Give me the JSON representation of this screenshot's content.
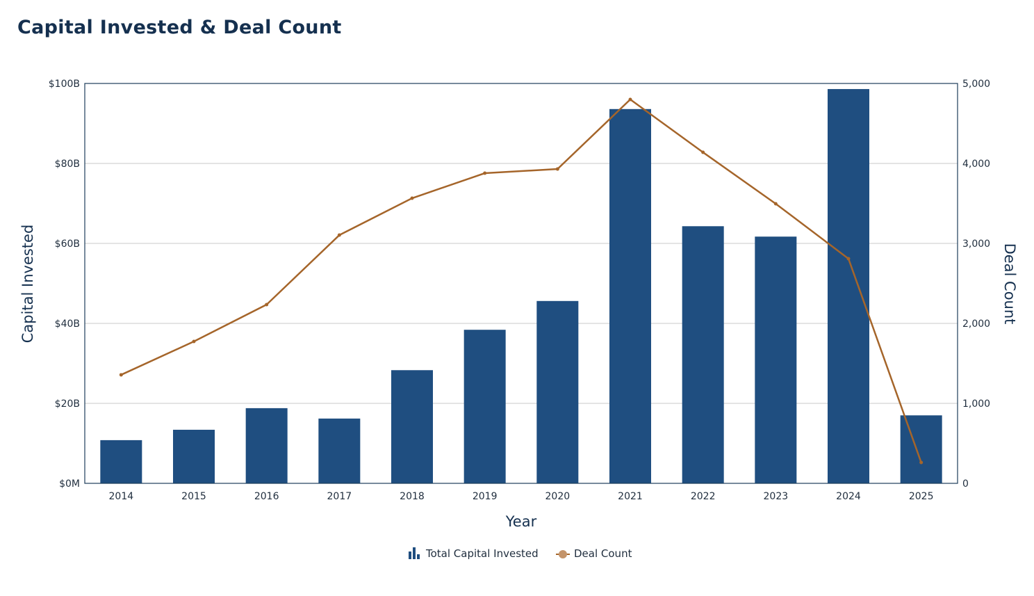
{
  "chart_data": {
    "type": "bar+line",
    "title": "Capital Invested & Deal Count",
    "xlabel": "Year",
    "ylabel_left": "Capital Invested",
    "ylabel_right": "Deal Count",
    "categories": [
      "2014",
      "2015",
      "2016",
      "2017",
      "2018",
      "2019",
      "2020",
      "2021",
      "2022",
      "2023",
      "2024",
      "2025"
    ],
    "y_left_ticks": [
      "$0M",
      "$20B",
      "$40B",
      "$60B",
      "$80B",
      "$100B"
    ],
    "y_right_ticks": [
      "0",
      "1,000",
      "2,000",
      "3,000",
      "4,000",
      "5,000"
    ],
    "ylim_left": [
      0,
      100
    ],
    "ylim_right": [
      0,
      5000
    ],
    "grid": true,
    "legend_position": "bottom",
    "series": [
      {
        "name": "Total Capital Invested",
        "type": "bar",
        "axis": "left",
        "unit": "$B",
        "color": "#1f4e80",
        "values": [
          10.8,
          13.4,
          18.8,
          16.2,
          28.3,
          38.4,
          45.6,
          93.6,
          64.3,
          61.7,
          98.6,
          17.0
        ]
      },
      {
        "name": "Deal Count",
        "type": "line",
        "axis": "right",
        "color": "#a5652a",
        "values": [
          1357,
          1774,
          2235,
          3104,
          3565,
          3878,
          3930,
          4800,
          4139,
          3496,
          2809,
          261
        ]
      }
    ]
  }
}
